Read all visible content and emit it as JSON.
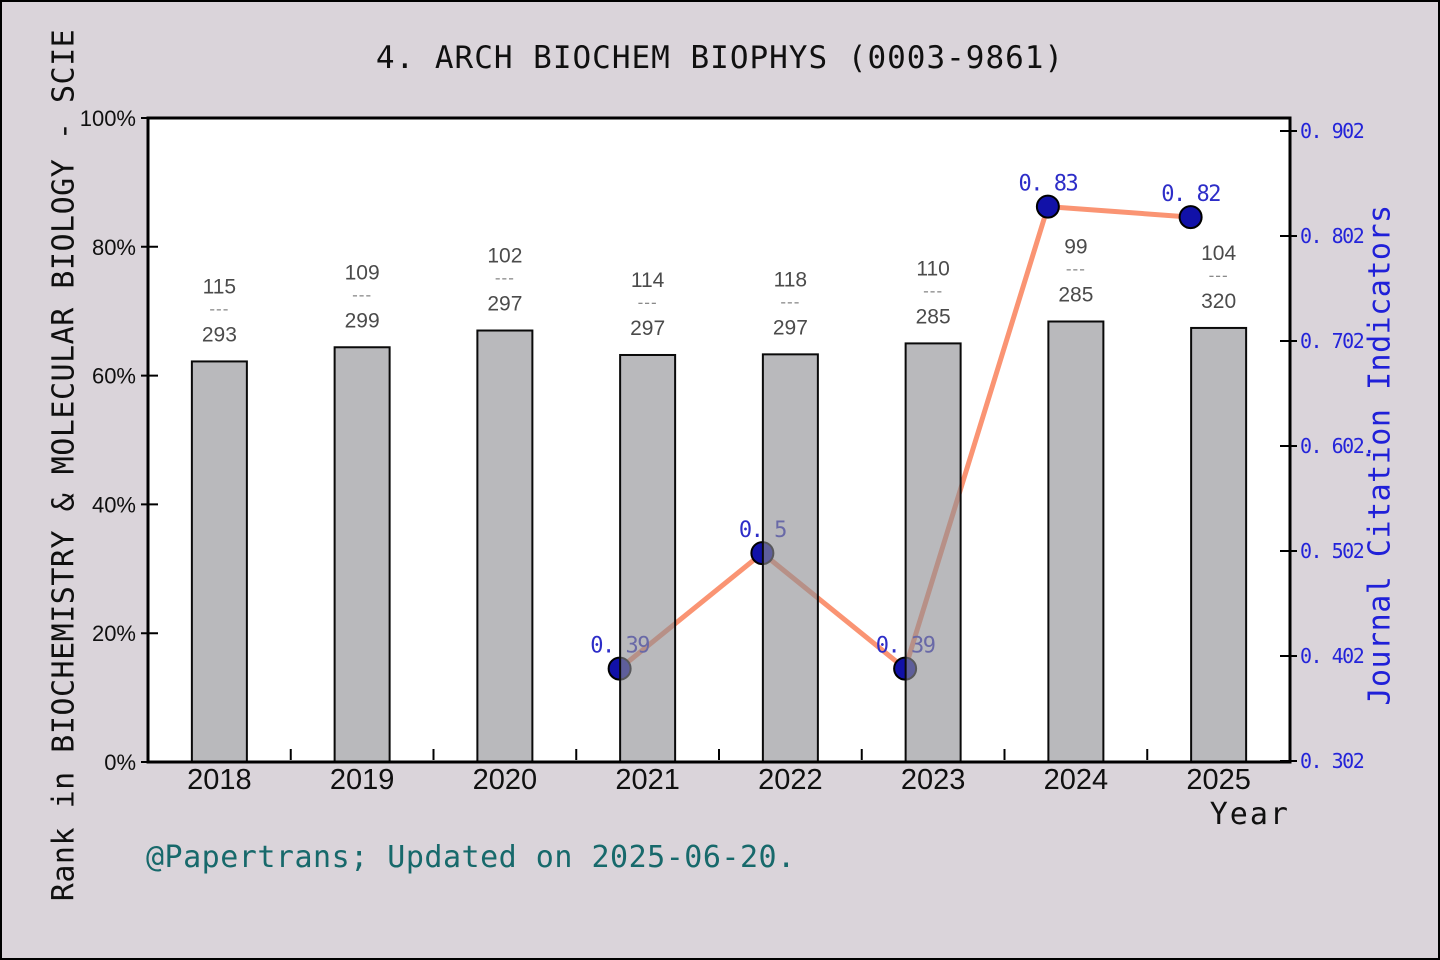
{
  "title": "4. ARCH BIOCHEM BIOPHYS (0003-9861)",
  "axes": {
    "left_title": "Rank in BIOCHEMISTRY & MOLECULAR BIOLOGY - SCIE",
    "right_title": "Journal Citation Indicators",
    "x_title": "Year"
  },
  "footer": "@Papertrans; Updated on 2025-06-20.",
  "colors": {
    "background": "#dad4da",
    "plot_background": "#ffffff",
    "axis": "#000000",
    "bar_fill": "rgba(142,142,147,0.62)",
    "bar_edge": "#0a0a0a",
    "line": "#fa9473",
    "marker": "#1111a8",
    "marker_edge": "#000000",
    "value_label": "#2d2dc8",
    "right_axis_text": "#2424d9",
    "fraction_text": "#4b4b4b",
    "footer_text": "#17696b"
  },
  "chart_data": {
    "type": "bar+line",
    "title": "4. ARCH BIOCHEM BIOPHYS (0003-9861)",
    "categories": [
      "2018",
      "2019",
      "2020",
      "2021",
      "2022",
      "2023",
      "2024",
      "2025"
    ],
    "fraction_separator": "---",
    "series": [
      {
        "name": "Rank in BIOCHEMISTRY & MOLECULAR BIOLOGY - SCIE",
        "type": "bar",
        "axis": "left",
        "rank_labels": [
          {
            "numerator": "115",
            "denominator": "293"
          },
          {
            "numerator": "109",
            "denominator": "299"
          },
          {
            "numerator": "102",
            "denominator": "297"
          },
          {
            "numerator": "114",
            "denominator": "297"
          },
          {
            "numerator": "118",
            "denominator": "297"
          },
          {
            "numerator": "110",
            "denominator": "285"
          },
          {
            "numerator": "99",
            "denominator": "285"
          },
          {
            "numerator": "104",
            "denominator": "320"
          }
        ],
        "bar_heights_pct": [
          62.2,
          64.4,
          67.0,
          63.2,
          63.3,
          65.0,
          68.4,
          67.4
        ]
      },
      {
        "name": "Journal Citation Indicators",
        "type": "line",
        "axis": "right",
        "values": [
          null,
          null,
          null,
          0.39,
          0.5,
          0.39,
          0.83,
          0.82
        ],
        "point_labels": [
          null,
          null,
          null,
          "0. 39",
          "0. 5",
          "0. 39",
          "0. 83",
          "0. 82"
        ]
      }
    ],
    "left_axis": {
      "tick_labels": [
        "100%",
        "80%",
        "60%",
        "40%",
        "20%",
        "0%"
      ],
      "tick_values": [
        100,
        80,
        60,
        40,
        20,
        0
      ],
      "range": [
        0,
        100
      ]
    },
    "right_axis": {
      "tick_labels": [
        "0. 902",
        "0. 802",
        "0. 702",
        "0. 602.",
        "0. 502",
        "0. 402",
        "0. 302"
      ],
      "tick_values": [
        0.902,
        0.802,
        0.702,
        0.602,
        0.502,
        0.402,
        0.302
      ],
      "range": [
        0.302,
        0.902
      ]
    },
    "x_axis": {
      "label": "Year",
      "minor_ticks_between_years": true
    },
    "legend": "none",
    "grid": false
  }
}
